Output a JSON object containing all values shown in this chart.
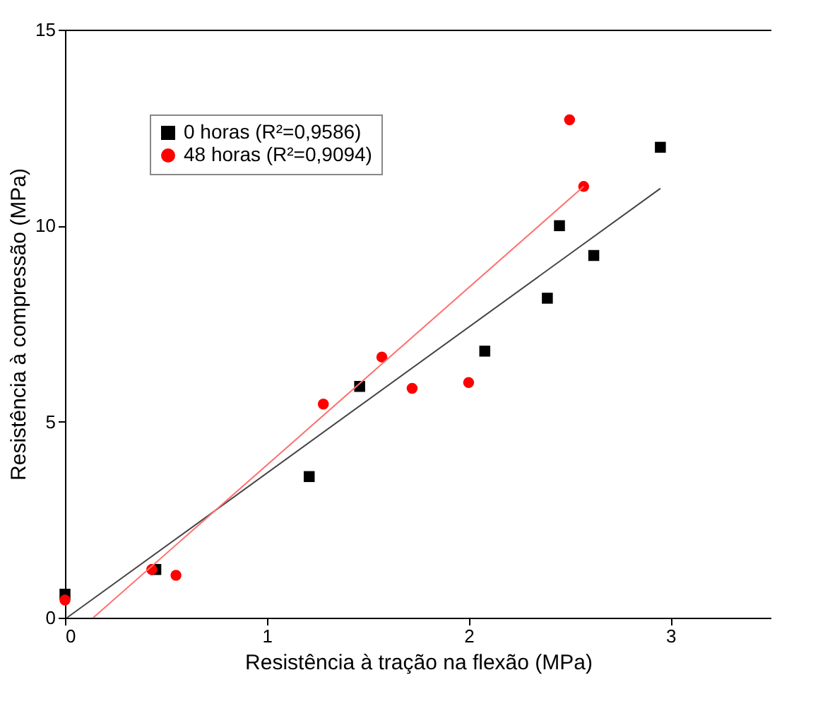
{
  "chart_data": {
    "type": "scatter",
    "xlabel": "Resistência à tração na flexão (MPa)",
    "ylabel": "Resistência à compressão (MPa)",
    "xlim": [
      0,
      3.5
    ],
    "xticks": [
      0,
      1,
      2,
      3
    ],
    "ylim": [
      0,
      15
    ],
    "yticks": [
      0,
      5,
      10,
      15
    ],
    "grid": false,
    "legend": "top left",
    "series": [
      {
        "name": "0 horas (R²=0,9586)",
        "color": "#000000",
        "marker": "square",
        "x": [
          0,
          0.45,
          1.21,
          1.46,
          2.08,
          2.39,
          2.45,
          2.62,
          2.95
        ],
        "values": [
          0.6,
          1.23,
          3.6,
          5.9,
          6.8,
          8.15,
          10.0,
          9.24,
          12.0
        ]
      },
      {
        "name": "48 horas (R²=0,9094)",
        "color": "#ff0000",
        "marker": "circle",
        "x": [
          0,
          0.43,
          0.55,
          1.28,
          1.57,
          1.72,
          2.0,
          2.5,
          2.57
        ],
        "values": [
          0.45,
          1.23,
          1.08,
          5.45,
          6.65,
          5.85,
          6.0,
          12.7,
          11.0
        ]
      },
      {
        "type": "line",
        "color": "#444444",
        "marker": "none",
        "x": [
          0.01,
          2.95
        ],
        "values": [
          0,
          10.95
        ]
      },
      {
        "type": "line",
        "color": "#ff7070",
        "marker": "none",
        "x": [
          0.14,
          2.57
        ],
        "values": [
          0,
          11.0
        ]
      }
    ]
  }
}
